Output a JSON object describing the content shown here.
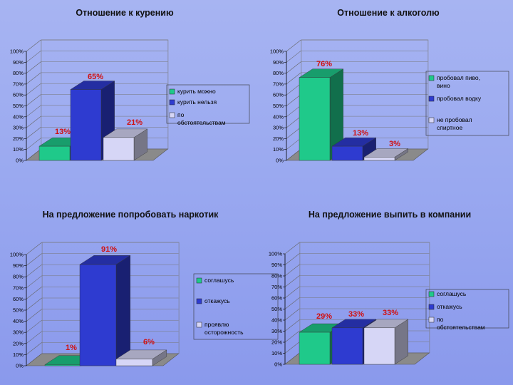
{
  "chart_data": [
    {
      "type": "bar",
      "title": "Отношение к курению",
      "ylim": [
        0,
        100
      ],
      "tick_labels": [
        "0%",
        "10%",
        "20%",
        "30%",
        "40%",
        "50%",
        "60%",
        "70%",
        "80%",
        "90%",
        "100%"
      ],
      "series": [
        {
          "name": "курить можно",
          "value": 13,
          "label": "13%",
          "color": "#1fc98a"
        },
        {
          "name": "курить нельзя",
          "value": 65,
          "label": "65%",
          "color": "#2e3bd0"
        },
        {
          "name": "по обстоятельствам",
          "value": 21,
          "label": "21%",
          "color": "#d6d6f6"
        }
      ],
      "legend_position": "right"
    },
    {
      "type": "bar",
      "title": "Отношение к алкоголю",
      "ylim": [
        0,
        100
      ],
      "tick_labels": [
        "0%",
        "10%",
        "20%",
        "30%",
        "40%",
        "50%",
        "60%",
        "70%",
        "80%",
        "90%",
        "100%"
      ],
      "series": [
        {
          "name": "пробовал пиво, вино",
          "value": 76,
          "label": "76%",
          "color": "#1fc98a"
        },
        {
          "name": "пробовал водку",
          "value": 13,
          "label": "13%",
          "color": "#2e3bd0"
        },
        {
          "name": "не пробовал спиртное",
          "value": 3,
          "label": "3%",
          "color": "#d6d6f6"
        }
      ],
      "legend_position": "right"
    },
    {
      "type": "bar",
      "title": "На предложение попробовать наркотик",
      "ylim": [
        0,
        100
      ],
      "tick_labels": [
        "0%",
        "10%",
        "20%",
        "30%",
        "40%",
        "50%",
        "60%",
        "70%",
        "80%",
        "90%",
        "100%"
      ],
      "series": [
        {
          "name": "соглашусь",
          "value": 1,
          "label": "1%",
          "color": "#1fc98a"
        },
        {
          "name": "откажусь",
          "value": 91,
          "label": "91%",
          "color": "#2e3bd0"
        },
        {
          "name": "проявлю осторожность",
          "value": 6,
          "label": "6%",
          "color": "#d6d6f6"
        }
      ],
      "legend_position": "right"
    },
    {
      "type": "bar",
      "title": "На предложение выпить в компании",
      "ylim": [
        0,
        100
      ],
      "tick_labels": [
        "0%",
        "10%",
        "20%",
        "30%",
        "40%",
        "50%",
        "60%",
        "70%",
        "80%",
        "90%",
        "100%"
      ],
      "series": [
        {
          "name": "соглашусь",
          "value": 29,
          "label": "29%",
          "color": "#1fc98a"
        },
        {
          "name": "откажусь",
          "value": 33,
          "label": "33%",
          "color": "#2e3bd0"
        },
        {
          "name": "по обстоятельствам",
          "value": 33,
          "label": "33%",
          "color": "#d6d6f6"
        }
      ],
      "legend_position": "right"
    }
  ]
}
